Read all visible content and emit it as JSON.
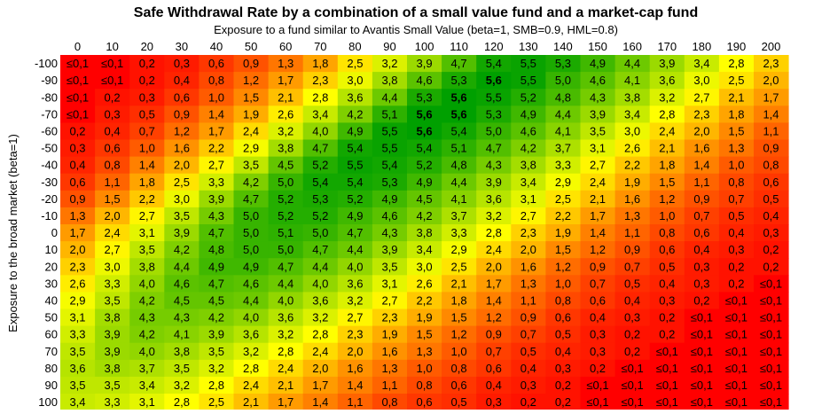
{
  "chart_data": {
    "type": "heatmap",
    "title": "Safe Withdrawal Rate by a combination of a small value fund and a market-cap fund",
    "xlabel": "Exposure to a fund similar to Avantis Small Value (beta=1, SMB=0.9, HML=0.8)",
    "ylabel": "Exposure to the broad market (beta=1)",
    "x": [
      "0",
      "10",
      "20",
      "30",
      "40",
      "50",
      "60",
      "70",
      "80",
      "90",
      "100",
      "110",
      "120",
      "130",
      "140",
      "150",
      "160",
      "170",
      "180",
      "190",
      "200"
    ],
    "y": [
      "-100",
      "-90",
      "-80",
      "-70",
      "-60",
      "-50",
      "-40",
      "-30",
      "-20",
      "-10",
      "0",
      "10",
      "20",
      "30",
      "40",
      "50",
      "60",
      "70",
      "80",
      "90",
      "100"
    ],
    "cells": [
      [
        "≤0,1",
        "≤0,1",
        "0,2",
        "0,3",
        "0,6",
        "0,9",
        "1,3",
        "1,8",
        "2,5",
        "3,2",
        "3,9",
        "4,7",
        "5,4",
        "5,5",
        "5,3",
        "4,9",
        "4,4",
        "3,9",
        "3,4",
        "2,8",
        "2,3"
      ],
      [
        "≤0,1",
        "≤0,1",
        "0,2",
        "0,4",
        "0,8",
        "1,2",
        "1,7",
        "2,3",
        "3,0",
        "3,8",
        "4,6",
        "5,3",
        "5,6",
        "5,5",
        "5,0",
        "4,6",
        "4,1",
        "3,6",
        "3,0",
        "2,5",
        "2,0"
      ],
      [
        "≤0,1",
        "0,2",
        "0,3",
        "0,6",
        "1,0",
        "1,5",
        "2,1",
        "2,8",
        "3,6",
        "4,4",
        "5,3",
        "5,6",
        "5,5",
        "5,2",
        "4,8",
        "4,3",
        "3,8",
        "3,2",
        "2,7",
        "2,1",
        "1,7"
      ],
      [
        "≤0,1",
        "0,3",
        "0,5",
        "0,9",
        "1,4",
        "1,9",
        "2,6",
        "3,4",
        "4,2",
        "5,1",
        "5,6",
        "5,6",
        "5,3",
        "4,9",
        "4,4",
        "3,9",
        "3,4",
        "2,8",
        "2,3",
        "1,8",
        "1,4"
      ],
      [
        "0,2",
        "0,4",
        "0,7",
        "1,2",
        "1,7",
        "2,4",
        "3,2",
        "4,0",
        "4,9",
        "5,5",
        "5,6",
        "5,4",
        "5,0",
        "4,6",
        "4,1",
        "3,5",
        "3,0",
        "2,4",
        "2,0",
        "1,5",
        "1,1"
      ],
      [
        "0,3",
        "0,6",
        "1,0",
        "1,6",
        "2,2",
        "2,9",
        "3,8",
        "4,7",
        "5,4",
        "5,5",
        "5,4",
        "5,1",
        "4,7",
        "4,2",
        "3,7",
        "3,1",
        "2,6",
        "2,1",
        "1,6",
        "1,3",
        "0,9"
      ],
      [
        "0,4",
        "0,8",
        "1,4",
        "2,0",
        "2,7",
        "3,5",
        "4,5",
        "5,2",
        "5,5",
        "5,4",
        "5,2",
        "4,8",
        "4,3",
        "3,8",
        "3,3",
        "2,7",
        "2,2",
        "1,8",
        "1,4",
        "1,0",
        "0,8"
      ],
      [
        "0,6",
        "1,1",
        "1,8",
        "2,5",
        "3,3",
        "4,2",
        "5,0",
        "5,4",
        "5,4",
        "5,3",
        "4,9",
        "4,4",
        "3,9",
        "3,4",
        "2,9",
        "2,4",
        "1,9",
        "1,5",
        "1,1",
        "0,8",
        "0,6"
      ],
      [
        "0,9",
        "1,5",
        "2,2",
        "3,0",
        "3,9",
        "4,7",
        "5,2",
        "5,3",
        "5,2",
        "4,9",
        "4,5",
        "4,1",
        "3,6",
        "3,1",
        "2,5",
        "2,1",
        "1,6",
        "1,2",
        "0,9",
        "0,7",
        "0,5"
      ],
      [
        "1,3",
        "2,0",
        "2,7",
        "3,5",
        "4,3",
        "5,0",
        "5,2",
        "5,2",
        "4,9",
        "4,6",
        "4,2",
        "3,7",
        "3,2",
        "2,7",
        "2,2",
        "1,7",
        "1,3",
        "1,0",
        "0,7",
        "0,5",
        "0,4"
      ],
      [
        "1,7",
        "2,4",
        "3,1",
        "3,9",
        "4,7",
        "5,0",
        "5,1",
        "5,0",
        "4,7",
        "4,3",
        "3,8",
        "3,3",
        "2,8",
        "2,3",
        "1,9",
        "1,4",
        "1,1",
        "0,8",
        "0,6",
        "0,4",
        "0,3"
      ],
      [
        "2,0",
        "2,7",
        "3,5",
        "4,2",
        "4,8",
        "5,0",
        "5,0",
        "4,7",
        "4,4",
        "3,9",
        "3,4",
        "2,9",
        "2,4",
        "2,0",
        "1,5",
        "1,2",
        "0,9",
        "0,6",
        "0,4",
        "0,3",
        "0,2"
      ],
      [
        "2,3",
        "3,0",
        "3,8",
        "4,4",
        "4,9",
        "4,9",
        "4,7",
        "4,4",
        "4,0",
        "3,5",
        "3,0",
        "2,5",
        "2,0",
        "1,6",
        "1,2",
        "0,9",
        "0,7",
        "0,5",
        "0,3",
        "0,2",
        "0,2"
      ],
      [
        "2,6",
        "3,3",
        "4,0",
        "4,6",
        "4,7",
        "4,6",
        "4,4",
        "4,0",
        "3,6",
        "3,1",
        "2,6",
        "2,1",
        "1,7",
        "1,3",
        "1,0",
        "0,7",
        "0,5",
        "0,4",
        "0,3",
        "0,2",
        "≤0,1"
      ],
      [
        "2,9",
        "3,5",
        "4,2",
        "4,5",
        "4,5",
        "4,4",
        "4,0",
        "3,6",
        "3,2",
        "2,7",
        "2,2",
        "1,8",
        "1,4",
        "1,1",
        "0,8",
        "0,6",
        "0,4",
        "0,3",
        "0,2",
        "≤0,1",
        "≤0,1"
      ],
      [
        "3,1",
        "3,8",
        "4,3",
        "4,3",
        "4,2",
        "4,0",
        "3,6",
        "3,2",
        "2,7",
        "2,3",
        "1,9",
        "1,5",
        "1,2",
        "0,9",
        "0,6",
        "0,4",
        "0,3",
        "0,2",
        "≤0,1",
        "≤0,1",
        "≤0,1"
      ],
      [
        "3,3",
        "3,9",
        "4,2",
        "4,1",
        "3,9",
        "3,6",
        "3,2",
        "2,8",
        "2,3",
        "1,9",
        "1,5",
        "1,2",
        "0,9",
        "0,7",
        "0,5",
        "0,3",
        "0,2",
        "0,2",
        "≤0,1",
        "≤0,1",
        "≤0,1"
      ],
      [
        "3,5",
        "3,9",
        "4,0",
        "3,8",
        "3,5",
        "3,2",
        "2,8",
        "2,4",
        "2,0",
        "1,6",
        "1,3",
        "1,0",
        "0,7",
        "0,5",
        "0,4",
        "0,3",
        "0,2",
        "≤0,1",
        "≤0,1",
        "≤0,1",
        "≤0,1"
      ],
      [
        "3,6",
        "3,8",
        "3,7",
        "3,5",
        "3,2",
        "2,8",
        "2,4",
        "2,0",
        "1,6",
        "1,3",
        "1,0",
        "0,8",
        "0,6",
        "0,4",
        "0,3",
        "0,2",
        "≤0,1",
        "≤0,1",
        "≤0,1",
        "≤0,1",
        "≤0,1"
      ],
      [
        "3,5",
        "3,5",
        "3,4",
        "3,2",
        "2,8",
        "2,4",
        "2,1",
        "1,7",
        "1,4",
        "1,1",
        "0,8",
        "0,6",
        "0,4",
        "0,3",
        "0,2",
        "≤0,1",
        "≤0,1",
        "≤0,1",
        "≤0,1",
        "≤0,1",
        "≤0,1"
      ],
      [
        "3,4",
        "3,3",
        "3,1",
        "2,8",
        "2,5",
        "2,1",
        "1,7",
        "1,4",
        "1,1",
        "0,8",
        "0,6",
        "0,5",
        "0,3",
        "0,2",
        "0,2",
        "≤0,1",
        "≤0,1",
        "≤0,1",
        "≤0,1",
        "≤0,1",
        "≤0,1"
      ]
    ],
    "max_value": "5,6",
    "color_low": "#ff0000",
    "color_mid": "#ffff00",
    "color_high": "#00a000",
    "grid": false,
    "legend": "none"
  }
}
